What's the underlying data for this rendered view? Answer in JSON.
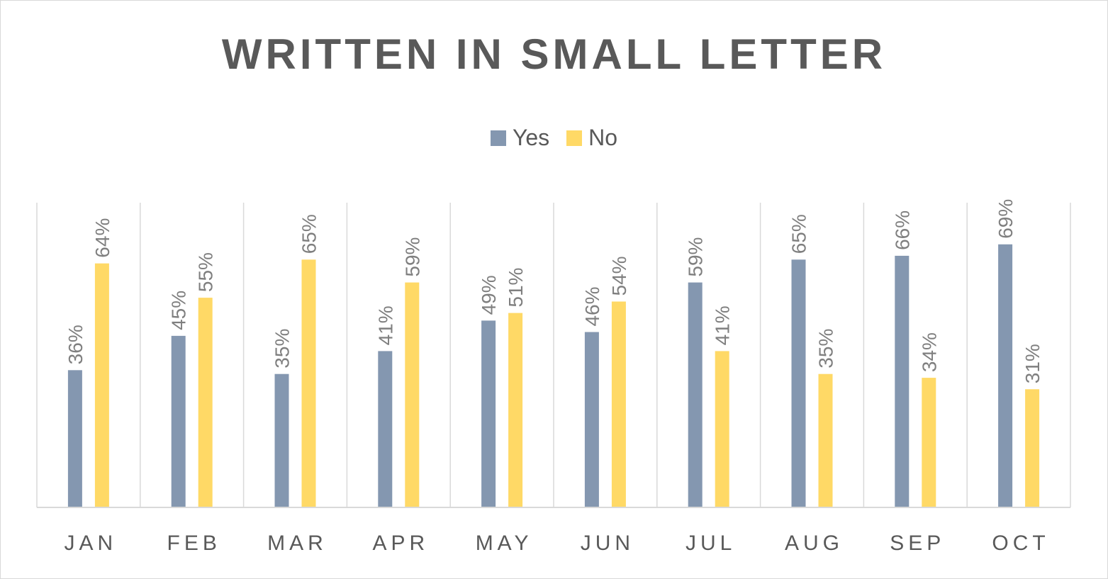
{
  "chart_data": {
    "type": "bar",
    "title": "WRITTEN IN SMALL LETTER",
    "categories": [
      "JAN",
      "FEB",
      "MAR",
      "APR",
      "MAY",
      "JUN",
      "JUL",
      "AUG",
      "SEP",
      "OCT"
    ],
    "series": [
      {
        "name": "Yes",
        "color": "#8497b0",
        "values": [
          36,
          45,
          35,
          41,
          49,
          46,
          59,
          65,
          66,
          69
        ],
        "labels": [
          "36%",
          "45%",
          "35%",
          "41%",
          "49%",
          "46%",
          "59%",
          "65%",
          "66%",
          "69%"
        ]
      },
      {
        "name": "No",
        "color": "#ffd966",
        "values": [
          64,
          55,
          65,
          59,
          51,
          54,
          41,
          35,
          34,
          31
        ],
        "labels": [
          "64%",
          "55%",
          "65%",
          "59%",
          "51%",
          "54%",
          "41%",
          "35%",
          "34%",
          "31%"
        ]
      }
    ],
    "ylim": [
      0,
      80
    ],
    "grid": "vertical-category-separators",
    "legend_position": "top"
  }
}
